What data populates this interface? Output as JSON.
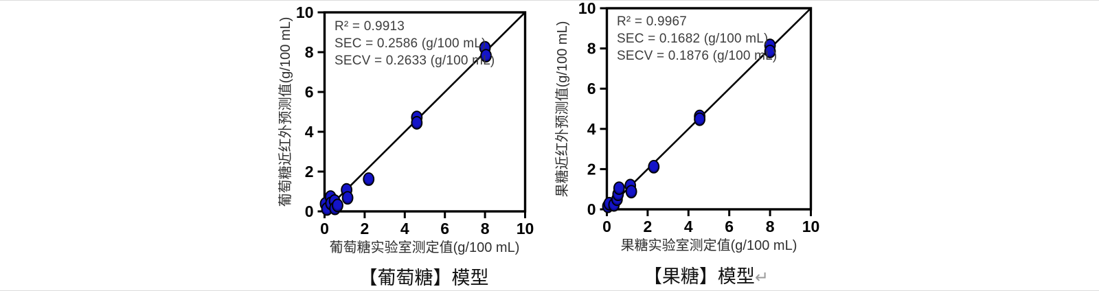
{
  "page": {
    "background": "#ffffff",
    "edge_line_color": "#dcdcdc"
  },
  "chart_data": [
    {
      "type": "scatter",
      "title": "【葡萄糖】模型",
      "title_suffix": "",
      "xlabel": "葡萄糖实验室测定值(g/100 mL)",
      "ylabel": "葡萄糖近红外预测值(g/100 mL)",
      "xlim": [
        0,
        10
      ],
      "ylim": [
        0,
        10
      ],
      "xticks": [
        0,
        2,
        4,
        6,
        8,
        10
      ],
      "yticks": [
        0,
        2,
        4,
        6,
        8,
        10
      ],
      "grid": false,
      "legend": "none",
      "identity_line": true,
      "annotations": [
        "R² = 0.9913",
        "SEC = 0.2586 (g/100 mL)",
        "SECV = 0.2633 (g/100 mL)"
      ],
      "points": [
        [
          0.05,
          0.38
        ],
        [
          0.12,
          0.12
        ],
        [
          0.3,
          0.72
        ],
        [
          0.32,
          0.4
        ],
        [
          0.5,
          0.52
        ],
        [
          0.52,
          0.15
        ],
        [
          0.65,
          0.3
        ],
        [
          1.1,
          1.08
        ],
        [
          1.15,
          0.68
        ],
        [
          2.2,
          1.62
        ],
        [
          4.6,
          4.72
        ],
        [
          4.6,
          4.45
        ],
        [
          8.0,
          8.22
        ],
        [
          8.05,
          7.82
        ]
      ],
      "point_color": "#1414c8",
      "point_dark_color": "#000050",
      "point_edge_color": "#000000",
      "axis_color": "#000000"
    },
    {
      "type": "scatter",
      "title": "【果糖】模型",
      "title_suffix": "↵",
      "xlabel": "果糖实验室测定值(g/100 mL)",
      "ylabel": "果糖近红外预测值(g/100 mL)",
      "xlim": [
        0,
        10
      ],
      "ylim": [
        0,
        10
      ],
      "xticks": [
        0,
        2,
        4,
        6,
        8,
        10
      ],
      "yticks": [
        0,
        2,
        4,
        6,
        8,
        10
      ],
      "grid": false,
      "legend": "none",
      "identity_line": true,
      "annotations": [
        "R² = 0.9967",
        "SEC = 0.1682 (g/100 mL)",
        "SECV = 0.1876 (g/100 mL)"
      ],
      "points": [
        [
          0.05,
          0.15
        ],
        [
          0.12,
          0.28
        ],
        [
          0.35,
          0.22
        ],
        [
          0.5,
          0.5
        ],
        [
          0.55,
          0.75
        ],
        [
          0.6,
          1.05
        ],
        [
          1.15,
          1.18
        ],
        [
          1.2,
          0.88
        ],
        [
          2.3,
          2.12
        ],
        [
          4.55,
          4.62
        ],
        [
          4.55,
          4.48
        ],
        [
          8.0,
          8.15
        ],
        [
          8.0,
          7.85
        ]
      ],
      "point_color": "#1414c8",
      "point_dark_color": "#000050",
      "point_edge_color": "#000000",
      "axis_color": "#000000"
    }
  ]
}
